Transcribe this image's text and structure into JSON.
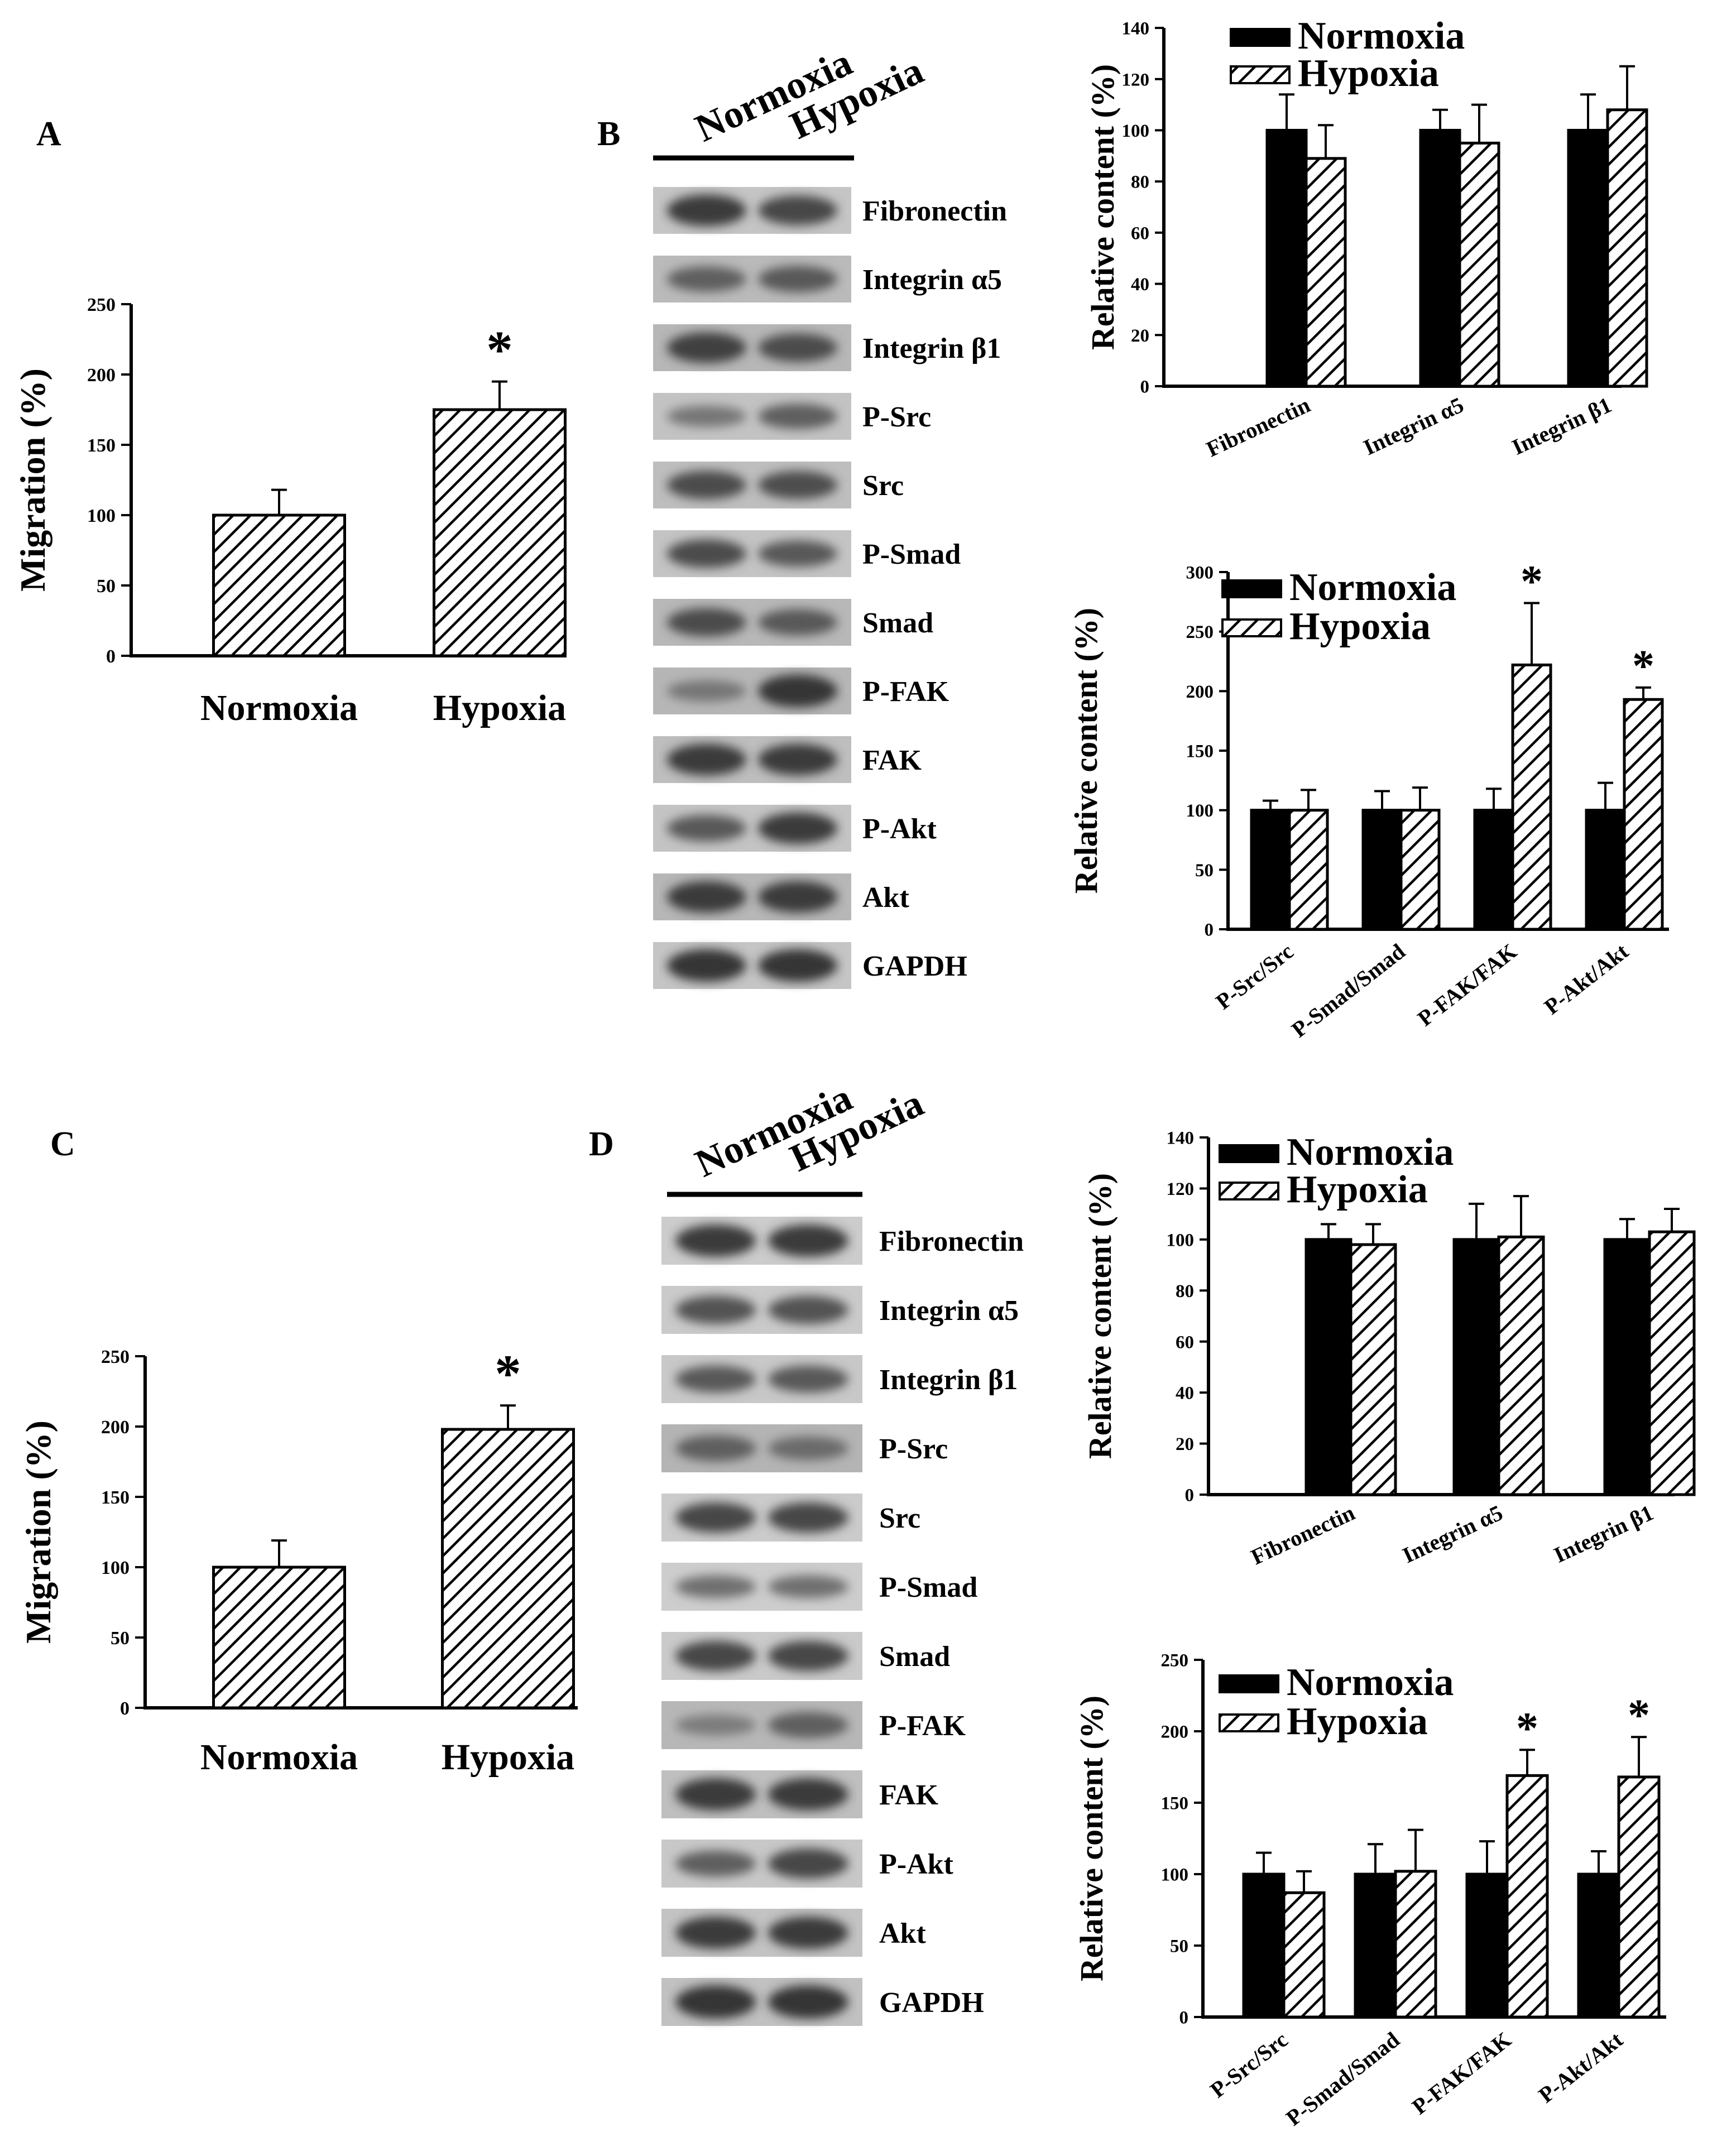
{
  "panel_letters": [
    "A",
    "B",
    "C",
    "D"
  ],
  "colors": {
    "normoxia": "#000000",
    "hypoxia_hatch": "#000000",
    "background": "#ffffff"
  },
  "significance_marker": "*",
  "blots": [
    {
      "panel": "B",
      "lane_labels": [
        "Normoxia",
        "Hypoxia"
      ],
      "bands": [
        {
          "label": "Fibronectin",
          "intensity": [
            0.85,
            0.75
          ]
        },
        {
          "label": "Integrin α5",
          "intensity": [
            0.55,
            0.6
          ]
        },
        {
          "label": "Integrin β1",
          "intensity": [
            0.8,
            0.7
          ]
        },
        {
          "label": "P-Src",
          "intensity": [
            0.35,
            0.55
          ]
        },
        {
          "label": "Src",
          "intensity": [
            0.7,
            0.68
          ]
        },
        {
          "label": "P-Smad",
          "intensity": [
            0.7,
            0.6
          ]
        },
        {
          "label": "Smad",
          "intensity": [
            0.7,
            0.6
          ]
        },
        {
          "label": "P-FAK",
          "intensity": [
            0.35,
            0.9
          ]
        },
        {
          "label": "FAK",
          "intensity": [
            0.85,
            0.85
          ]
        },
        {
          "label": "P-Akt",
          "intensity": [
            0.6,
            0.85
          ]
        },
        {
          "label": "Akt",
          "intensity": [
            0.85,
            0.85
          ]
        },
        {
          "label": "GAPDH",
          "intensity": [
            0.9,
            0.9
          ]
        }
      ]
    },
    {
      "panel": "D",
      "lane_labels": [
        "Normoxia",
        "Hypoxia"
      ],
      "bands": [
        {
          "label": "Fibronectin",
          "intensity": [
            0.85,
            0.85
          ]
        },
        {
          "label": "Integrin α5",
          "intensity": [
            0.65,
            0.65
          ]
        },
        {
          "label": "Integrin β1",
          "intensity": [
            0.6,
            0.6
          ]
        },
        {
          "label": "P-Src",
          "intensity": [
            0.55,
            0.45
          ]
        },
        {
          "label": "Src",
          "intensity": [
            0.75,
            0.75
          ]
        },
        {
          "label": "P-Smad",
          "intensity": [
            0.4,
            0.4
          ]
        },
        {
          "label": "Smad",
          "intensity": [
            0.75,
            0.75
          ]
        },
        {
          "label": "P-FAK",
          "intensity": [
            0.3,
            0.55
          ]
        },
        {
          "label": "FAK",
          "intensity": [
            0.85,
            0.85
          ]
        },
        {
          "label": "P-Akt",
          "intensity": [
            0.55,
            0.75
          ]
        },
        {
          "label": "Akt",
          "intensity": [
            0.85,
            0.85
          ]
        },
        {
          "label": "GAPDH",
          "intensity": [
            0.9,
            0.9
          ]
        }
      ]
    }
  ],
  "chart_data": [
    {
      "id": "A",
      "type": "bar",
      "ylabel": "Migration (%)",
      "xlabel": "",
      "categories": [
        "Normoxia",
        "Hypoxia"
      ],
      "values": [
        100,
        175
      ],
      "errors": [
        18,
        20
      ],
      "ylim": [
        0,
        250
      ],
      "yticks": [
        0,
        50,
        100,
        150,
        200,
        250
      ],
      "significant": [
        false,
        true
      ]
    },
    {
      "id": "B-upper",
      "type": "bar",
      "ylabel": "Relative content (%)",
      "xlabel": "",
      "categories": [
        "Fibronectin",
        "Integrin α5",
        "Integrin β1"
      ],
      "series": [
        {
          "name": "Normoxia",
          "values": [
            100,
            100,
            100
          ],
          "errors": [
            14,
            8,
            14
          ]
        },
        {
          "name": "Hypoxia",
          "values": [
            89,
            95,
            108
          ],
          "errors": [
            13,
            15,
            17
          ]
        }
      ],
      "ylim": [
        0,
        140
      ],
      "yticks": [
        0,
        20,
        40,
        60,
        80,
        100,
        120,
        140
      ],
      "legend": "top-left",
      "significant": [
        false,
        false,
        false
      ]
    },
    {
      "id": "B-lower",
      "type": "bar",
      "ylabel": "Relative content (%)",
      "xlabel": "",
      "categories": [
        "P-Src/Src",
        "P-Smad/Smad",
        "P-FAK/FAK",
        "P-Akt/Akt"
      ],
      "series": [
        {
          "name": "Normoxia",
          "values": [
            100,
            100,
            100,
            100
          ],
          "errors": [
            8,
            16,
            18,
            23
          ]
        },
        {
          "name": "Hypoxia",
          "values": [
            100,
            100,
            222,
            193
          ],
          "errors": [
            17,
            19,
            52,
            10
          ]
        }
      ],
      "ylim": [
        0,
        300
      ],
      "yticks": [
        0,
        50,
        100,
        150,
        200,
        250,
        300
      ],
      "legend": "top-left",
      "significant": [
        false,
        false,
        true,
        true
      ]
    },
    {
      "id": "C",
      "type": "bar",
      "ylabel": "Migration (%)",
      "xlabel": "",
      "categories": [
        "Normoxia",
        "Hypoxia"
      ],
      "values": [
        100,
        198
      ],
      "errors": [
        19,
        17
      ],
      "ylim": [
        0,
        250
      ],
      "yticks": [
        0,
        50,
        100,
        150,
        200,
        250
      ],
      "significant": [
        false,
        true
      ]
    },
    {
      "id": "D-upper",
      "type": "bar",
      "ylabel": "Relative content (%)",
      "xlabel": "",
      "categories": [
        "Fibronectin",
        "Integrin α5",
        "Integrin β1"
      ],
      "series": [
        {
          "name": "Normoxia",
          "values": [
            100,
            100,
            100
          ],
          "errors": [
            6,
            14,
            8
          ]
        },
        {
          "name": "Hypoxia",
          "values": [
            98,
            101,
            103
          ],
          "errors": [
            8,
            16,
            9
          ]
        }
      ],
      "ylim": [
        0,
        140
      ],
      "yticks": [
        0,
        20,
        40,
        60,
        80,
        100,
        120,
        140
      ],
      "legend": "top-left",
      "significant": [
        false,
        false,
        false
      ]
    },
    {
      "id": "D-lower",
      "type": "bar",
      "ylabel": "Relative content (%)",
      "xlabel": "",
      "categories": [
        "P-Src/Src",
        "P-Smad/Smad",
        "P-FAK/FAK",
        "P-Akt/Akt"
      ],
      "series": [
        {
          "name": "Normoxia",
          "values": [
            100,
            100,
            100,
            100
          ],
          "errors": [
            15,
            21,
            23,
            16
          ]
        },
        {
          "name": "Hypoxia",
          "values": [
            87,
            102,
            169,
            168
          ],
          "errors": [
            15,
            29,
            18,
            28
          ]
        }
      ],
      "ylim": [
        0,
        250
      ],
      "yticks": [
        0,
        50,
        100,
        150,
        200,
        250
      ],
      "legend": "top-left",
      "significant": [
        false,
        false,
        true,
        true
      ]
    }
  ]
}
